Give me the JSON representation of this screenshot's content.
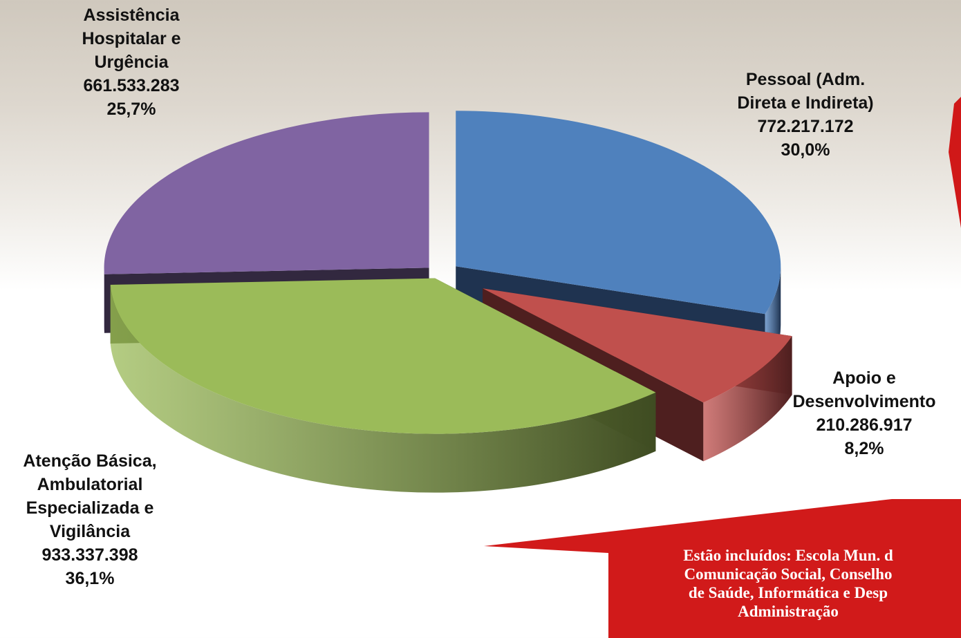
{
  "chart_data": {
    "type": "pie3d",
    "categories": [
      "Pessoal (Adm. Direta e Indireta)",
      "Apoio e Desenvolvimento",
      "Atenção Básica, Ambulatorial Especializada e Vigilância",
      "Assistência Hospitalar e Urgência"
    ],
    "values": [
      772217172,
      210286917,
      933337398,
      661533283
    ],
    "value_labels": [
      "772.217.172",
      "210.286.917",
      "933.337.398",
      "661.533.283"
    ],
    "percents": [
      30.0,
      8.2,
      36.1,
      25.7
    ],
    "percent_labels": [
      "30,0%",
      "8,2%",
      "36,1%",
      "25,7%"
    ],
    "colors": [
      "#4f81bd",
      "#c0504d",
      "#9bbb59",
      "#8064a2"
    ],
    "side_colors": [
      "#1f3350",
      "#4e1f1f",
      "#3f4c22",
      "#32283f"
    ]
  },
  "callout": {
    "lines": [
      "Estão incluídos: Escola Mun. d",
      "Comunicação Social, Conselho",
      "de Saúde, Informática e Desp",
      "Administração"
    ]
  }
}
